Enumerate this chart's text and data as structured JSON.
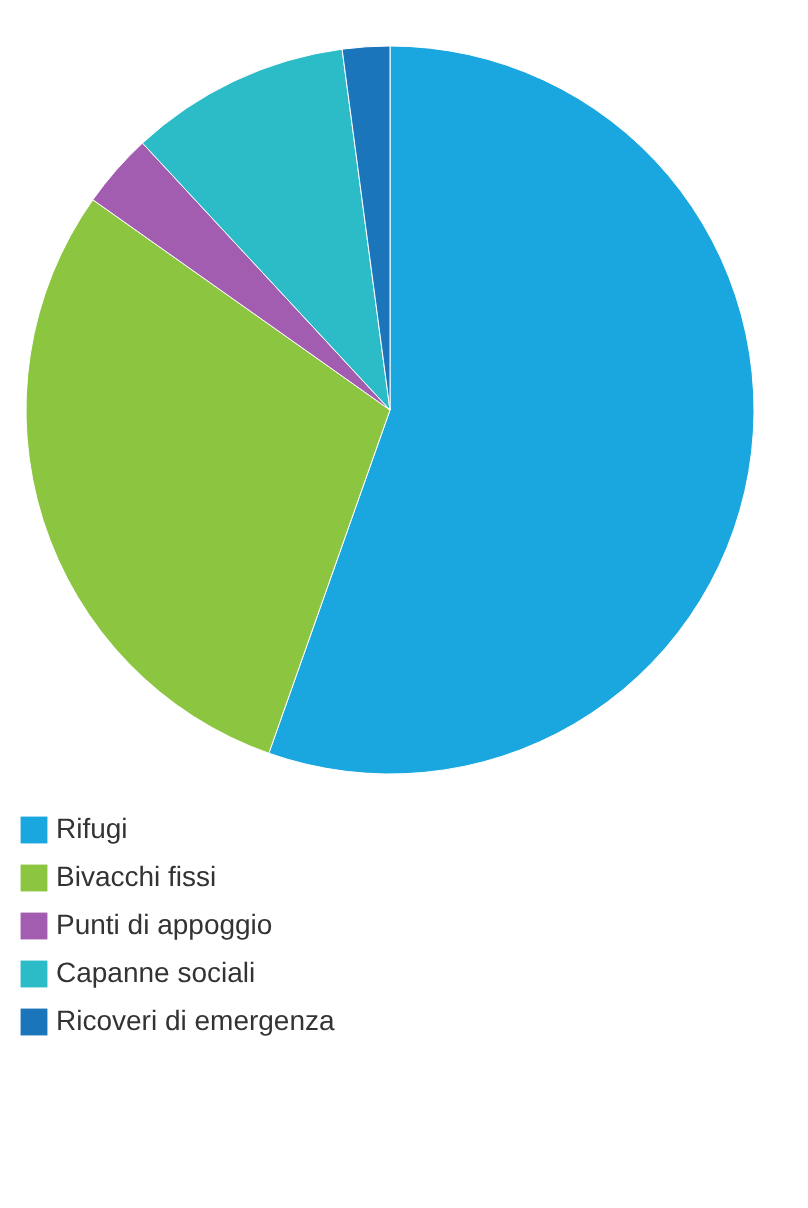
{
  "chart_data": {
    "type": "pie",
    "categories": [
      "Rifugi",
      "Bivacchi fissi",
      "Punti di appoggio",
      "Capanne sociali",
      "Ricoveri di emergenza"
    ],
    "values": [
      55.4,
      29.4,
      3.3,
      9.8,
      2.1
    ],
    "colors": [
      "#1aa7e0",
      "#8cc540",
      "#a35db0",
      "#2bbcc8",
      "#1a75bb"
    ],
    "legend": "bottom left"
  }
}
